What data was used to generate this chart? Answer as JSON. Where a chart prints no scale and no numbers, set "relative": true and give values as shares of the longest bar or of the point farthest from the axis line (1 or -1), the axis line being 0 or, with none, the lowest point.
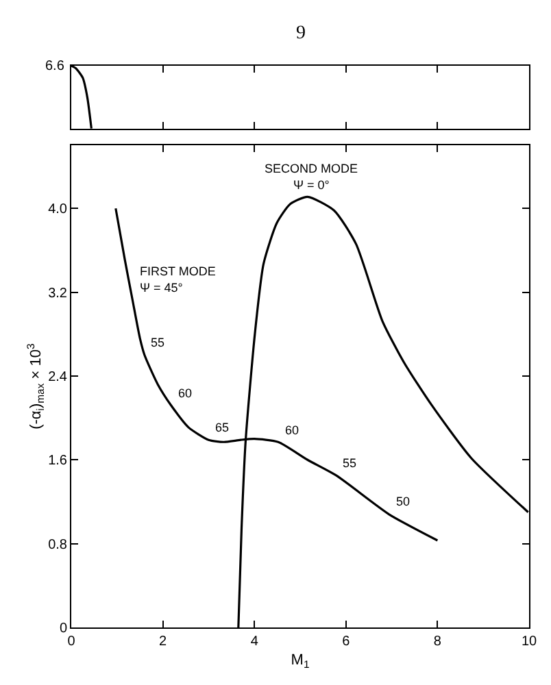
{
  "chart_data": [
    {
      "type": "line",
      "relative": true,
      "annotations": [
        "6.6"
      ],
      "xlim": [
        0,
        10
      ],
      "xticks": [
        0,
        2,
        4,
        6,
        8,
        10
      ],
      "tick_labels": false,
      "series": [
        {
          "color": "#000000",
          "x": [
            0,
            0.1,
            0.25,
            0.35,
            0.44
          ],
          "values": [
            1,
            0.96,
            0.81,
            0.5,
            0
          ]
        }
      ]
    },
    {
      "type": "line",
      "xlabel": "M$_{1}$",
      "ylabel": "(-α$_{i}$)$_{max}$ × 10$^{3}$",
      "xlim": [
        0,
        10
      ],
      "xticks": [
        0,
        2,
        4,
        6,
        8,
        10
      ],
      "ylim": [
        0,
        4.6
      ],
      "yticks": [
        0,
        {
          "value": 0.8,
          "label": "0.8"
        },
        {
          "value": 1.6,
          "label": "1.6"
        },
        {
          "value": 2.4,
          "label": "2.4"
        },
        {
          "value": 3.2,
          "label": "3.2"
        },
        {
          "value": 4.0,
          "label": "4.0"
        }
      ],
      "annotations": [
        "9",
        {
          "text": "FIRST MODE",
          "x": 1.34,
          "y": 3.12
        },
        {
          "text": "Ψ = 45°",
          "x": 1.34,
          "y": 3.12
        },
        {
          "text": "55",
          "x": 1.6,
          "y": 2.6
        },
        {
          "text": "60",
          "x": 2.18,
          "y": 2.12
        },
        {
          "text": "65",
          "x": 3.0,
          "y": 1.79
        },
        {
          "text": "60",
          "x": 4.52,
          "y": 1.77
        },
        {
          "text": "55",
          "x": 5.79,
          "y": 1.45
        },
        {
          "text": "50",
          "x": 6.94,
          "y": 1.08
        },
        {
          "text": "SECOND MODE",
          "x": 5.16,
          "y": 4.11
        },
        {
          "text": "Ψ = 0°",
          "x": 5.16,
          "y": 4.11
        }
      ],
      "series": [
        {
          "color": "#000000",
          "x": [
            0.97,
            1.17,
            1.34,
            1.5,
            1.6,
            1.89,
            2.18,
            2.56,
            3.0,
            3.33,
            3.7,
            4.0,
            4.52,
            5.16,
            5.79,
            6.94,
            8.0
          ],
          "values": [
            4.0,
            3.51,
            3.12,
            2.76,
            2.6,
            2.32,
            2.12,
            1.91,
            1.79,
            1.77,
            1.79,
            1.8,
            1.77,
            1.6,
            1.45,
            1.08,
            0.83
          ]
        },
        {
          "color": "#000000",
          "x": [
            3.65,
            3.72,
            3.81,
            4.01,
            4.2,
            4.49,
            4.78,
            5.16,
            5.74,
            6.22,
            6.8,
            7.28,
            7.86,
            8.73,
            9.98
          ],
          "values": [
            0,
            0.95,
            1.79,
            2.8,
            3.47,
            3.86,
            4.04,
            4.11,
            3.98,
            3.66,
            2.92,
            2.52,
            2.13,
            1.62,
            1.1
          ]
        }
      ]
    }
  ]
}
